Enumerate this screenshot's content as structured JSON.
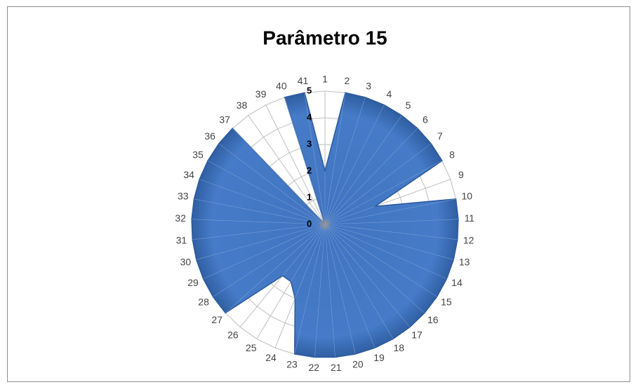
{
  "chart_data": {
    "type": "radar",
    "title": "Parâmetro 15",
    "categories": [
      "1",
      "2",
      "3",
      "4",
      "5",
      "6",
      "7",
      "8",
      "9",
      "10",
      "11",
      "12",
      "13",
      "14",
      "15",
      "16",
      "17",
      "18",
      "19",
      "20",
      "21",
      "22",
      "23",
      "24",
      "25",
      "26",
      "27",
      "28",
      "29",
      "30",
      "31",
      "32",
      "33",
      "34",
      "35",
      "36",
      "37",
      "38",
      "39",
      "40",
      "41"
    ],
    "values": [
      2,
      5,
      5,
      5,
      5,
      5,
      5,
      5,
      2,
      5,
      5,
      5,
      5,
      5,
      5,
      5,
      5,
      5,
      5,
      5,
      5,
      5,
      5,
      3,
      2.5,
      2.5,
      5,
      5,
      5,
      5,
      5,
      5,
      5,
      5,
      5,
      5,
      5,
      0,
      0,
      5,
      5
    ],
    "color": "#3a6fbf",
    "ylim": [
      0,
      5
    ],
    "yticks": [
      0,
      1,
      2,
      3,
      4,
      5
    ],
    "grid": true
  }
}
